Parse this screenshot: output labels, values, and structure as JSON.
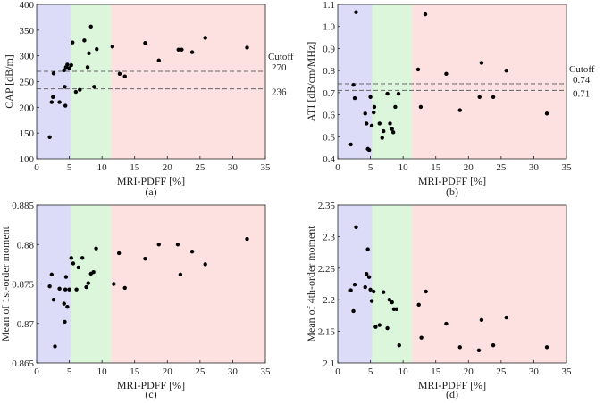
{
  "chart_data": [
    {
      "type": "scatter",
      "panel_label": "(a)",
      "xlabel": "MRI-PDFF [%]",
      "ylabel": "CAP [dB/m]",
      "xlim": [
        0,
        35
      ],
      "ylim": [
        100,
        400
      ],
      "xticks": [
        0,
        5,
        10,
        15,
        20,
        25,
        30,
        35
      ],
      "yticks": [
        100,
        150,
        200,
        250,
        300,
        350,
        400
      ],
      "ytick_labels": [
        "100",
        "150",
        "200",
        "250",
        "300",
        "350",
        "400"
      ],
      "bands": [
        {
          "from": 0,
          "to": 5.3,
          "color": "#dcdcf8"
        },
        {
          "from": 5.3,
          "to": 11.4,
          "color": "#dcf6dc"
        },
        {
          "from": 11.4,
          "to": 35,
          "color": "#fde0e0"
        }
      ],
      "cutoffs": [
        270,
        236
      ],
      "cutoff_labels": [
        "270",
        "236"
      ],
      "cutoff_title": "Cutoff",
      "points": [
        [
          2.0,
          142
        ],
        [
          2.3,
          210
        ],
        [
          2.5,
          220
        ],
        [
          2.6,
          266
        ],
        [
          3.5,
          210
        ],
        [
          4.2,
          272
        ],
        [
          4.3,
          240
        ],
        [
          4.4,
          203
        ],
        [
          4.5,
          278
        ],
        [
          4.7,
          283
        ],
        [
          5.0,
          276
        ],
        [
          5.3,
          282
        ],
        [
          5.5,
          326
        ],
        [
          6.0,
          230
        ],
        [
          6.6,
          234
        ],
        [
          7.3,
          330
        ],
        [
          7.8,
          278
        ],
        [
          8.0,
          305
        ],
        [
          8.3,
          357
        ],
        [
          8.8,
          240
        ],
        [
          9.2,
          313
        ],
        [
          11.6,
          318
        ],
        [
          12.7,
          265
        ],
        [
          13.5,
          260
        ],
        [
          16.6,
          325
        ],
        [
          18.7,
          291
        ],
        [
          21.7,
          312
        ],
        [
          22.2,
          312
        ],
        [
          23.8,
          307
        ],
        [
          25.8,
          335
        ],
        [
          32.2,
          316
        ]
      ]
    },
    {
      "type": "scatter",
      "panel_label": "(b)",
      "xlabel": "MRI-PDFF [%]",
      "ylabel": "ATI [dB/cm/MHz]",
      "xlim": [
        0,
        35
      ],
      "ylim": [
        0.4,
        1.1
      ],
      "xticks": [
        0,
        5,
        10,
        15,
        20,
        25,
        30,
        35
      ],
      "yticks": [
        0.4,
        0.5,
        0.6,
        0.7,
        0.8,
        0.9,
        1.0,
        1.1
      ],
      "ytick_labels": [
        "0.4",
        "0.5",
        "0.6",
        "0.7",
        "0.8",
        "0.9",
        "1.0",
        "1.1"
      ],
      "bands": [
        {
          "from": 0,
          "to": 5.3,
          "color": "#dcdcf8"
        },
        {
          "from": 5.3,
          "to": 11.4,
          "color": "#dcf6dc"
        },
        {
          "from": 11.4,
          "to": 35,
          "color": "#fde0e0"
        }
      ],
      "cutoffs": [
        0.74,
        0.71
      ],
      "cutoff_labels": [
        "0.74",
        "0.71"
      ],
      "cutoff_title": "Cutoff",
      "points": [
        [
          2.0,
          0.465
        ],
        [
          2.4,
          0.735
        ],
        [
          2.6,
          0.675
        ],
        [
          2.8,
          1.065
        ],
        [
          4.2,
          0.605
        ],
        [
          4.4,
          0.56
        ],
        [
          4.6,
          0.445
        ],
        [
          4.8,
          0.44
        ],
        [
          5.0,
          0.68
        ],
        [
          5.2,
          0.55
        ],
        [
          5.5,
          0.61
        ],
        [
          5.6,
          0.635
        ],
        [
          6.4,
          0.56
        ],
        [
          6.8,
          0.495
        ],
        [
          7.0,
          0.525
        ],
        [
          7.6,
          0.695
        ],
        [
          8.0,
          0.56
        ],
        [
          8.3,
          0.535
        ],
        [
          8.5,
          0.52
        ],
        [
          8.8,
          0.635
        ],
        [
          9.3,
          0.695
        ],
        [
          12.3,
          0.805
        ],
        [
          12.7,
          0.635
        ],
        [
          13.4,
          1.055
        ],
        [
          16.6,
          0.785
        ],
        [
          18.7,
          0.62
        ],
        [
          21.7,
          0.68
        ],
        [
          22.0,
          0.835
        ],
        [
          23.8,
          0.68
        ],
        [
          25.8,
          0.8
        ],
        [
          32.0,
          0.605
        ]
      ]
    },
    {
      "type": "scatter",
      "panel_label": "(c)",
      "xlabel": "MRI-PDFF [%]",
      "ylabel": "Mean of 1st-order moment",
      "xlim": [
        0,
        35
      ],
      "ylim": [
        0.865,
        0.885
      ],
      "xticks": [
        0,
        5,
        10,
        15,
        20,
        25,
        30,
        35
      ],
      "yticks": [
        0.865,
        0.87,
        0.875,
        0.88,
        0.885
      ],
      "ytick_labels": [
        "0.865",
        "0.87",
        "0.875",
        "0.88",
        "0.885"
      ],
      "bands": [
        {
          "from": 0,
          "to": 5.3,
          "color": "#dcdcf8"
        },
        {
          "from": 5.3,
          "to": 11.4,
          "color": "#dcf6dc"
        },
        {
          "from": 11.4,
          "to": 35,
          "color": "#fde0e0"
        }
      ],
      "cutoffs": [],
      "cutoff_labels": [],
      "cutoff_title": "",
      "points": [
        [
          2.0,
          0.8747
        ],
        [
          2.3,
          0.8762
        ],
        [
          2.6,
          0.873
        ],
        [
          2.8,
          0.8671
        ],
        [
          3.5,
          0.8744
        ],
        [
          4.2,
          0.8725
        ],
        [
          4.3,
          0.8702
        ],
        [
          4.4,
          0.8743
        ],
        [
          4.5,
          0.8759
        ],
        [
          4.7,
          0.8721
        ],
        [
          5.0,
          0.8743
        ],
        [
          5.3,
          0.8783
        ],
        [
          5.6,
          0.8776
        ],
        [
          6.1,
          0.8743
        ],
        [
          6.4,
          0.8771
        ],
        [
          7.0,
          0.8783
        ],
        [
          7.6,
          0.8746
        ],
        [
          7.9,
          0.8751
        ],
        [
          8.3,
          0.8763
        ],
        [
          8.7,
          0.8765
        ],
        [
          9.1,
          0.8795
        ],
        [
          11.8,
          0.875
        ],
        [
          12.6,
          0.8789
        ],
        [
          13.5,
          0.8745
        ],
        [
          16.6,
          0.8782
        ],
        [
          18.7,
          0.88
        ],
        [
          21.6,
          0.88
        ],
        [
          22.0,
          0.8762
        ],
        [
          23.8,
          0.8791
        ],
        [
          25.8,
          0.8775
        ],
        [
          32.2,
          0.8807
        ]
      ]
    },
    {
      "type": "scatter",
      "panel_label": "(d)",
      "xlabel": "MRI-PDFF [%]",
      "ylabel": "Mean of 4th-order moment",
      "xlim": [
        0,
        35
      ],
      "ylim": [
        2.1,
        2.35
      ],
      "xticks": [
        0,
        5,
        10,
        15,
        20,
        25,
        30,
        35
      ],
      "yticks": [
        2.1,
        2.15,
        2.2,
        2.25,
        2.3,
        2.35
      ],
      "ytick_labels": [
        "2.1",
        "2.15",
        "2.2",
        "2.25",
        "2.3",
        "2.35"
      ],
      "bands": [
        {
          "from": 0,
          "to": 5.3,
          "color": "#dcdcf8"
        },
        {
          "from": 5.3,
          "to": 11.4,
          "color": "#dcf6dc"
        },
        {
          "from": 11.4,
          "to": 35,
          "color": "#fde0e0"
        }
      ],
      "cutoffs": [],
      "cutoff_labels": [],
      "cutoff_title": "",
      "points": [
        [
          2.0,
          2.215
        ],
        [
          2.4,
          2.182
        ],
        [
          2.6,
          2.224
        ],
        [
          2.8,
          2.315
        ],
        [
          4.2,
          2.22
        ],
        [
          4.4,
          2.241
        ],
        [
          4.6,
          2.28
        ],
        [
          4.8,
          2.236
        ],
        [
          5.0,
          2.216
        ],
        [
          5.2,
          2.198
        ],
        [
          5.5,
          2.213
        ],
        [
          5.8,
          2.157
        ],
        [
          6.4,
          2.16
        ],
        [
          7.0,
          2.212
        ],
        [
          7.6,
          2.155
        ],
        [
          7.9,
          2.2
        ],
        [
          8.3,
          2.196
        ],
        [
          8.6,
          2.185
        ],
        [
          9.0,
          2.185
        ],
        [
          9.4,
          2.128
        ],
        [
          12.4,
          2.192
        ],
        [
          12.8,
          2.14
        ],
        [
          13.5,
          2.213
        ],
        [
          16.6,
          2.162
        ],
        [
          18.7,
          2.125
        ],
        [
          21.6,
          2.12
        ],
        [
          22.0,
          2.168
        ],
        [
          23.8,
          2.128
        ],
        [
          25.8,
          2.172
        ],
        [
          32.0,
          2.125
        ]
      ]
    }
  ]
}
